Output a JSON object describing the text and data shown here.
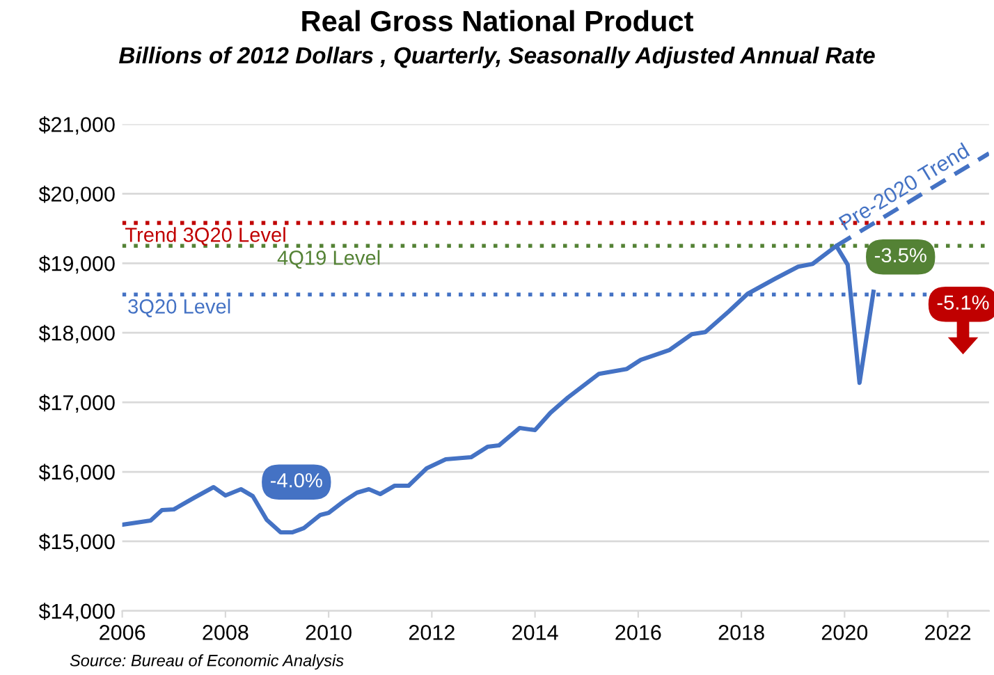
{
  "chart_data": {
    "type": "line",
    "title": "Real Gross National Product",
    "subtitle": "Billions of 2012 Dollars , Quarterly, Seasonally Adjusted Annual Rate",
    "series": [
      {
        "color": "#4472c4",
        "line_style": "solid",
        "x": [
          2006.0,
          2006.55,
          2006.77,
          2007.0,
          2007.4,
          2007.77,
          2008.0,
          2008.3,
          2008.53,
          2008.8,
          2009.07,
          2009.3,
          2009.52,
          2009.84,
          2010.0,
          2010.3,
          2010.55,
          2010.78,
          2011.0,
          2011.28,
          2011.55,
          2011.9,
          2012.27,
          2012.76,
          2013.08,
          2013.3,
          2013.7,
          2014.0,
          2014.3,
          2014.64,
          2015.24,
          2015.78,
          2016.05,
          2016.6,
          2017.04,
          2017.3,
          2017.76,
          2018.12,
          2018.66,
          2019.1,
          2019.38,
          2019.84,
          2020.06,
          2020.29,
          2020.56
        ],
        "values": [
          15240,
          15300,
          15450,
          15460,
          15630,
          15780,
          15660,
          15750,
          15650,
          15310,
          15130,
          15130,
          15190,
          15380,
          15410,
          15580,
          15700,
          15750,
          15680,
          15800,
          15800,
          16050,
          16180,
          16210,
          16360,
          16380,
          16630,
          16600,
          16850,
          17070,
          17410,
          17480,
          17610,
          17750,
          17980,
          18010,
          18310,
          18560,
          18780,
          18950,
          18990,
          19250,
          18980,
          17280,
          18590
        ]
      },
      {
        "name": "Pre-2020 Trend",
        "color": "#4472c4",
        "line_style": "dashed",
        "x": [
          2019.84,
          2022.8
        ],
        "values": [
          19250,
          20580
        ]
      }
    ],
    "xlim": [
      2006,
      2022.8
    ],
    "xticks": [
      2006,
      2008,
      2010,
      2012,
      2014,
      2016,
      2018,
      2020,
      2022
    ],
    "ylim": [
      14000,
      21000
    ],
    "yticks": [
      {
        "value": 14000,
        "label": "$14,000"
      },
      {
        "value": 15000,
        "label": "$15,000"
      },
      {
        "value": 16000,
        "label": "$16,000"
      },
      {
        "value": 17000,
        "label": "$17,000"
      },
      {
        "value": 18000,
        "label": "$18,000"
      },
      {
        "value": 19000,
        "label": "$19,000"
      },
      {
        "value": 20000,
        "label": "$20,000"
      },
      {
        "value": 21000,
        "label": "$21,000"
      }
    ],
    "grid": "y",
    "legend": false,
    "ref_lines": [
      {
        "axis": "y",
        "value": 19580,
        "label": "Trend 3Q20 Level",
        "color": "#c00000",
        "line_style": "dotted"
      },
      {
        "axis": "y",
        "value": 19250,
        "label": "4Q19 Level",
        "color": "#548235",
        "line_style": "dotted"
      },
      {
        "axis": "y",
        "value": 18550,
        "label": "3Q20 Level",
        "color": "#4472c4",
        "line_style": "dotted"
      }
    ],
    "annotations": [
      {
        "text": "-4.0%",
        "x": 2009.3,
        "y": 15130
      },
      {
        "text": "-3.5%",
        "x": 2020.56,
        "y": 18590
      },
      "-5.1%",
      "Source: Bureau of Economic Analysis"
    ]
  }
}
